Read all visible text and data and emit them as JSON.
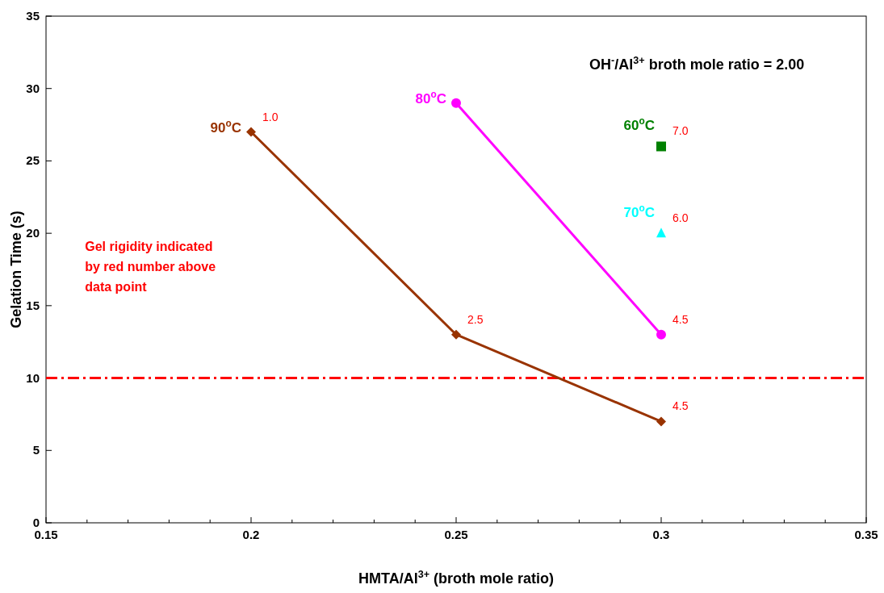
{
  "chart_data": {
    "type": "line",
    "xlabel": "HMTA/Al$^{3+}$ (broth mole ratio)",
    "ylabel": "Gelation Time (s)",
    "xlim": [
      0.15,
      0.35
    ],
    "xticks": [
      0.15,
      {
        "value": 0.16,
        "label": null
      },
      {
        "value": 0.17,
        "label": null
      },
      {
        "value": 0.18,
        "label": null
      },
      {
        "value": 0.19,
        "label": null
      },
      0.2,
      {
        "value": 0.21,
        "label": null
      },
      {
        "value": 0.22,
        "label": null
      },
      {
        "value": 0.23,
        "label": null
      },
      {
        "value": 0.24,
        "label": null
      },
      0.25,
      {
        "value": 0.26,
        "label": null
      },
      {
        "value": 0.27,
        "label": null
      },
      {
        "value": 0.28,
        "label": null
      },
      {
        "value": 0.29,
        "label": null
      },
      0.3,
      {
        "value": 0.31,
        "label": null
      },
      {
        "value": 0.32,
        "label": null
      },
      {
        "value": 0.33,
        "label": null
      },
      {
        "value": 0.34,
        "label": null
      },
      0.35
    ],
    "ylim": [
      0,
      35
    ],
    "yticks": [
      0,
      5,
      10,
      15,
      20,
      25,
      30,
      35
    ],
    "grid": false,
    "series": [
      {
        "name": "90$^{o}$C",
        "color": "#993300",
        "marker": "diamond",
        "x": [
          0.2,
          0.25,
          0.3
        ],
        "values": [
          27,
          13,
          7
        ]
      },
      {
        "name": "80$^{o}$C",
        "color": "#ff00ff",
        "marker": "circle",
        "x": [
          0.25,
          0.3
        ],
        "values": [
          29,
          13
        ]
      },
      {
        "name": "60$^{o}$C",
        "color": "#008000",
        "marker": "square",
        "x": [
          0.3
        ],
        "values": [
          26
        ]
      },
      {
        "name": "70$^{o}$C",
        "color": "#00ffff",
        "marker": "triangle",
        "x": [
          0.3
        ],
        "values": [
          20
        ]
      }
    ],
    "ref_lines": [
      {
        "axis": "y",
        "value": 10,
        "color": "#ff0000",
        "line_style": "dashed"
      }
    ],
    "annotations": [
      "OH$^{-}$/Al$^{3+}$ broth mole ratio = 2.00",
      "Gel rigidity indicated by red number above data point",
      {
        "text": "1.0",
        "x": 0.2,
        "y": 27
      },
      {
        "text": "2.5",
        "x": 0.25,
        "y": 13
      },
      {
        "text": "4.5",
        "x": 0.3,
        "y": 7
      },
      {
        "text": "4.5",
        "x": 0.3,
        "y": 13
      },
      {
        "text": "7.0",
        "x": 0.3,
        "y": 26
      },
      {
        "text": "6.0",
        "x": 0.3,
        "y": 20
      }
    ]
  }
}
